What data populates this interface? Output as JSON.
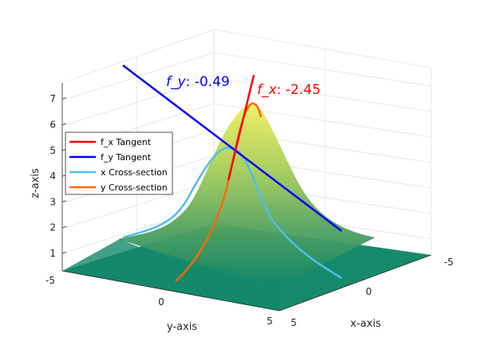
{
  "chart_data": {
    "type": "surface3d",
    "surface": {
      "function": "7*exp(-0.05*(x^2+y^2)) ... shown as a peaked gaussian-like surface",
      "x_range": [
        -5,
        5
      ],
      "y_range": [
        -5,
        5
      ],
      "z_range": [
        0,
        7.6
      ],
      "colormap": "summer"
    },
    "xlabel": "x-axis",
    "ylabel": "y-axis",
    "zlabel": "z-axis",
    "x_ticks": [
      "-5",
      "0",
      "5"
    ],
    "y_ticks": [
      "-5",
      "0",
      "5"
    ],
    "z_ticks": [
      "1",
      "2",
      "3",
      "4",
      "5",
      "6",
      "7"
    ],
    "grid": true,
    "series": [
      {
        "name": "f_x Tangent",
        "color": "#ff0000"
      },
      {
        "name": "f_y Tangent",
        "color": "#0000ff"
      },
      {
        "name": "x Cross-section",
        "color": "#4dbeee"
      },
      {
        "name": "y Cross-section",
        "color": "#ff6a00"
      }
    ],
    "legend_position": "left",
    "annotations": [
      {
        "label": "f_x",
        "value": ": -2.45",
        "color": "#ff0000"
      },
      {
        "label": "f_y",
        "value": ": -0.49",
        "color": "#0000ff"
      }
    ],
    "point": {
      "x": 1,
      "y": 0.2,
      "z": 5
    }
  }
}
